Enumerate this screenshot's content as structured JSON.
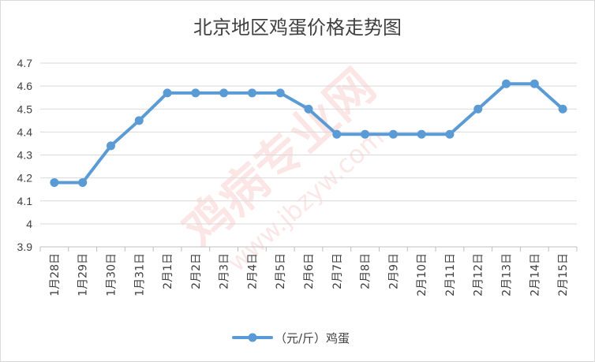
{
  "chart_data": {
    "type": "line",
    "title": "北京地区鸡蛋价格走势图",
    "xlabel": "",
    "ylabel": "",
    "categories": [
      "1月28日",
      "1月29日",
      "1月30日",
      "1月31日",
      "2月1日",
      "2月2日",
      "2月3日",
      "2月4日",
      "2月5日",
      "2月6日",
      "2月7日",
      "2月8日",
      "2月9日",
      "2月10日",
      "2月11日",
      "2月12日",
      "2月13日",
      "2月14日",
      "2月15日"
    ],
    "series": [
      {
        "name": "（元/斤）鸡蛋",
        "color": "#5b9bd5",
        "values": [
          4.18,
          4.18,
          4.34,
          4.45,
          4.57,
          4.57,
          4.57,
          4.57,
          4.57,
          4.5,
          4.39,
          4.39,
          4.39,
          4.39,
          4.39,
          4.5,
          4.61,
          4.61,
          4.5
        ]
      }
    ],
    "ylim": [
      3.9,
      4.7
    ],
    "yticks": [
      "3.9",
      "4",
      "4.1",
      "4.2",
      "4.3",
      "4.4",
      "4.5",
      "4.6",
      "4.7"
    ],
    "grid": true,
    "legend_position": "bottom"
  },
  "watermark": {
    "brand": "鸡病专业网",
    "url": "www.jbzyw.com",
    "color": "#e8423f"
  }
}
